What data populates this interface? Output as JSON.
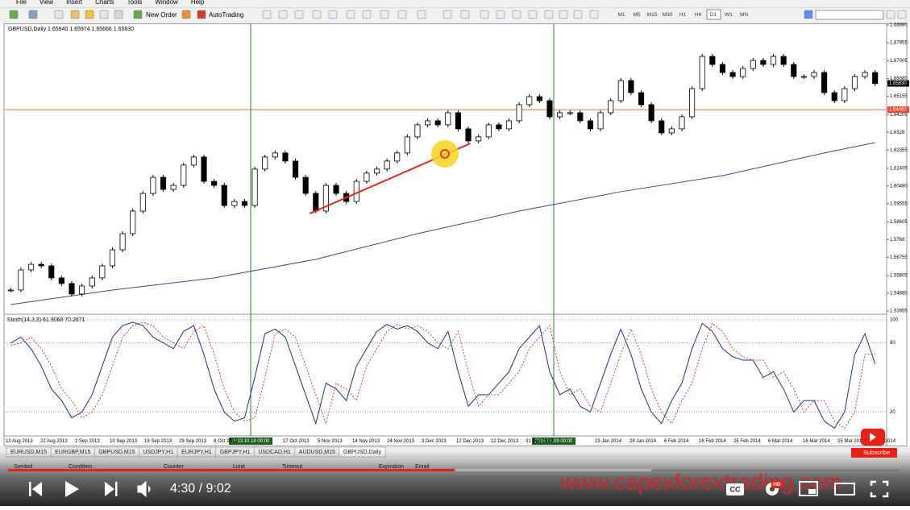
{
  "window": {
    "menu": [
      "File",
      "View",
      "Insert",
      "Charts",
      "Tools",
      "Window",
      "Help"
    ]
  },
  "toolbar": {
    "new_order": "New Order",
    "auto_trading": "AutoTrading",
    "timeframes": [
      "M1",
      "M5",
      "M15",
      "M30",
      "H1",
      "H4",
      "D1",
      "W1",
      "MN"
    ],
    "active_timeframe": 6
  },
  "chart_data": [
    {
      "type": "candlestick",
      "title": "GBPUSD,Daily 1.65940 1.65974 1.65666 1.65830",
      "closes": [
        1.5505,
        1.561,
        1.5639,
        1.5631,
        1.5568,
        1.5539,
        1.5484,
        1.5526,
        1.5568,
        1.5631,
        1.5715,
        1.5799,
        1.5917,
        1.6009,
        1.6093,
        1.603,
        1.6051,
        1.6157,
        1.6199,
        1.6072,
        1.6051,
        1.5946,
        1.5967,
        1.5946,
        1.6136,
        1.6199,
        1.622,
        1.6178,
        1.6093,
        1.6009,
        1.5917,
        1.6051,
        1.6009,
        1.5967,
        1.6072,
        1.6115,
        1.6136,
        1.6178,
        1.622,
        1.6304,
        1.6367,
        1.6388,
        1.6367,
        1.643,
        1.6346,
        1.6283,
        1.6304,
        1.6367,
        1.6346,
        1.6388,
        1.6472,
        1.6514,
        1.6493,
        1.6409,
        1.643,
        1.643,
        1.6388,
        1.6346,
        1.643,
        1.6493,
        1.6598,
        1.6535,
        1.6472,
        1.6388,
        1.6325,
        1.6346,
        1.6409,
        1.6556,
        1.6724,
        1.6682,
        1.664,
        1.6619,
        1.6661,
        1.6703,
        1.6682,
        1.6724,
        1.6682,
        1.6619,
        1.6619,
        1.664,
        1.6535,
        1.6493,
        1.6556,
        1.6619,
        1.664,
        1.6583
      ],
      "xlim": [
        -0.5,
        85.5
      ],
      "ylim": [
        1.53955,
        1.6888
      ],
      "yticks": [
        {
          "value": 1.6888,
          "label": "1.68880"
        },
        1.67955,
        1.67005,
        {
          "value": 1.6608,
          "label": "1.66080"
        },
        1.65155,
        1.64205,
        1.6328,
        1.62355,
        1.61405,
        {
          "value": 1.6048,
          "label": "1.60480"
        },
        1.59555,
        1.58605,
        1.5768,
        1.56755,
        1.55805,
        {
          "value": 1.5488,
          "label": "1.54880"
        },
        1.53955
      ],
      "moving_average": {
        "x": [
          0,
          10,
          20,
          30,
          40,
          50,
          60,
          70,
          80,
          85
        ],
        "values": [
          1.5429,
          1.5505,
          1.5568,
          1.5665,
          1.5799,
          1.5917,
          1.6018,
          1.6102,
          1.622,
          1.6274
        ],
        "color": "#3b4a80"
      },
      "trendline": {
        "x": [
          29.4,
          45.2
        ],
        "values": [
          1.5904,
          1.627
        ],
        "color": "#e02a20"
      },
      "hline": {
        "value": 1.64462,
        "color": "#e8703a"
      },
      "current": {
        "value": 1.6583,
        "label": "1.65830"
      },
      "vlines_x": [
        23.6,
        53.4
      ],
      "vline_color": "#2e7d32",
      "date_labels": [
        "13 Aug 2013",
        "22 Aug 2013",
        "1 Sep 2013",
        "10 Sep 2013",
        "19 Sep 2013",
        "29 Sep 2013",
        "8 Oct 2013",
        null,
        "27 Oct 2013",
        "5 Nov 2013",
        "14 Nov 2013",
        "24 Nov 2013",
        "3 Dec 2013",
        "12 Dec 2013",
        "22 Dec 2013",
        "31 Dec 2013",
        null,
        "19 Jan 2014",
        "28 Jan 2014",
        "6 Feb 2014",
        "16 Feb 2014",
        "25 Feb 2014",
        "6 Mar 2014",
        "16 Mar 2014",
        "25 Mar 2014",
        "3 Apr 2014"
      ],
      "cursor_dates": [
        "2013.10.18 00:00",
        "2014.01.09 00:00"
      ]
    },
    {
      "type": "line",
      "title": "Stoch(14,3,3) 61.8068 70.2671",
      "ylim": [
        0,
        100
      ],
      "yticks": [
        20,
        80,
        100
      ],
      "grid": "dotted",
      "series": [
        {
          "color": "#1f2d8a",
          "dash": false,
          "values": [
            80,
            85,
            75,
            60,
            40,
            30,
            15,
            20,
            35,
            60,
            85,
            95,
            98,
            95,
            85,
            80,
            75,
            90,
            95,
            70,
            40,
            20,
            12,
            15,
            50,
            88,
            92,
            85,
            60,
            35,
            10,
            45,
            40,
            30,
            60,
            75,
            90,
            96,
            92,
            95,
            90,
            80,
            75,
            90,
            55,
            25,
            35,
            35,
            45,
            55,
            75,
            85,
            95,
            55,
            35,
            40,
            25,
            20,
            45,
            70,
            92,
            70,
            40,
            20,
            10,
            30,
            45,
            75,
            97,
            90,
            75,
            68,
            65,
            65,
            50,
            55,
            40,
            20,
            30,
            30,
            12,
            6,
            20,
            70,
            88,
            61.8068
          ]
        },
        {
          "color": "#e03a30",
          "dash": true,
          "values": [
            78,
            80,
            85,
            75,
            60,
            40,
            30,
            15,
            20,
            35,
            60,
            85,
            95,
            98,
            95,
            85,
            80,
            75,
            90,
            95,
            70,
            40,
            20,
            12,
            15,
            50,
            88,
            92,
            85,
            60,
            35,
            10,
            45,
            40,
            30,
            60,
            75,
            90,
            96,
            92,
            95,
            90,
            80,
            75,
            90,
            55,
            25,
            35,
            35,
            45,
            55,
            75,
            85,
            95,
            55,
            35,
            40,
            25,
            20,
            45,
            70,
            92,
            70,
            40,
            20,
            10,
            30,
            45,
            75,
            97,
            90,
            75,
            68,
            65,
            65,
            50,
            55,
            40,
            20,
            30,
            30,
            12,
            6,
            20,
            70,
            70.2671
          ]
        }
      ]
    }
  ],
  "tabs": [
    "EURUSD,M15",
    "EURGBP,M15",
    "GBPUSD,M15",
    "USDJPY,H1",
    "EURJPY,H1",
    "GBPJPY,H1",
    "USDCAD,H1",
    "AUDUSD,M15",
    "GBPUSD,Daily"
  ],
  "active_tab": 8,
  "terminal": {
    "columns": [
      "Symbol",
      "Condition",
      "Counter",
      "Limit",
      "Timeout",
      "Expiration",
      "Email"
    ]
  },
  "player": {
    "time": "4:30 / 9:02",
    "watermark": "www.capexforextrading.com",
    "subscribe": "Subscribe",
    "hd": "HD",
    "cc": "CC",
    "played_fraction": 0.5,
    "buffered_fraction": 0.72
  }
}
